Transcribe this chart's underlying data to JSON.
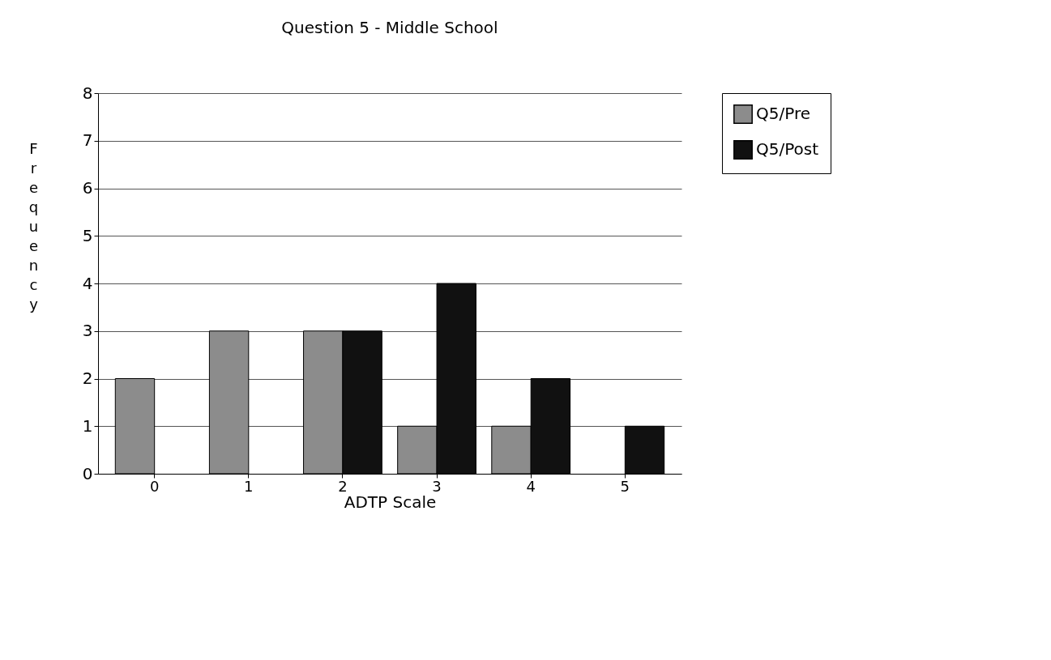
{
  "chart_data": {
    "type": "bar",
    "title": "Question 5 - Middle School",
    "xlabel": "ADTP Scale",
    "ylabel": "Frequency",
    "categories": [
      "0",
      "1",
      "2",
      "3",
      "4",
      "5"
    ],
    "series": [
      {
        "name": "Q5/Pre",
        "color": "#8c8c8c",
        "values": [
          2,
          3,
          3,
          1,
          1,
          0
        ]
      },
      {
        "name": "Q5/Post",
        "color": "#111111",
        "values": [
          0,
          0,
          3,
          4,
          2,
          1
        ]
      }
    ],
    "ylim": [
      0,
      8
    ],
    "yticks": [
      0,
      1,
      2,
      3,
      4,
      5,
      6,
      7,
      8
    ],
    "grid": "y",
    "legend": "top right"
  }
}
